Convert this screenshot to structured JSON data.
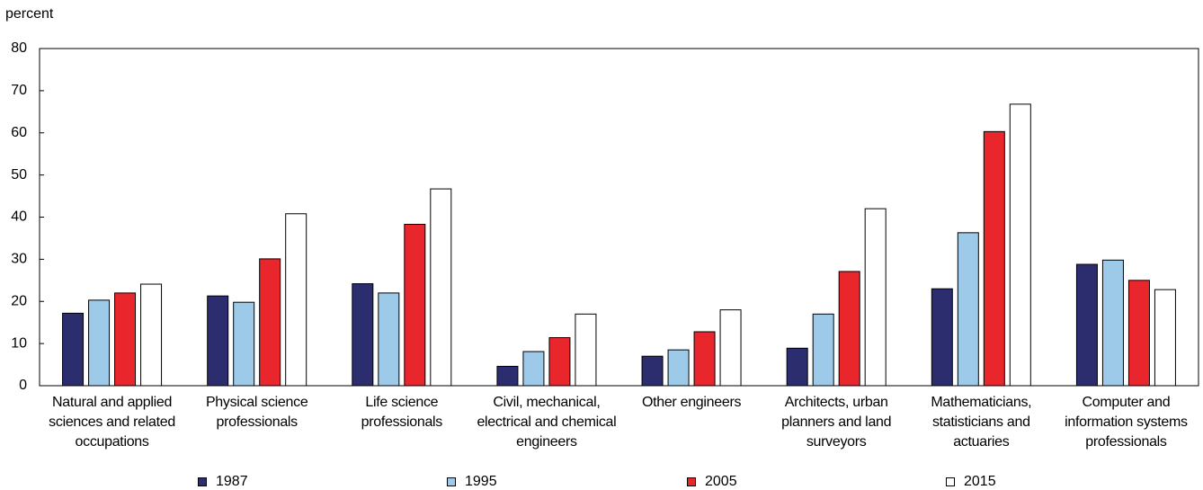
{
  "chart_data": {
    "type": "bar",
    "y_label": "percent",
    "categories": [
      "Natural and applied sciences and related occupations",
      "Physical science professionals",
      "Life science professionals",
      "Civil, mechanical, electrical and chemical engineers",
      "Other engineers",
      "Architects, urban planners and land surveyors",
      "Mathematicians, statisticians and actuaries",
      "Computer and information systems professionals"
    ],
    "series": [
      {
        "name": "1987",
        "color": "#2b2d6e",
        "values": [
          17.2,
          21.3,
          24.2,
          4.6,
          7.0,
          8.9,
          23.0,
          28.8
        ]
      },
      {
        "name": "1995",
        "color": "#9ecae9",
        "values": [
          20.3,
          19.8,
          22.0,
          8.1,
          8.5,
          17.0,
          36.3,
          29.8
        ]
      },
      {
        "name": "2005",
        "color": "#e8262c",
        "values": [
          22.0,
          30.1,
          38.3,
          11.4,
          12.8,
          27.1,
          60.3,
          25.0
        ]
      },
      {
        "name": "2015",
        "color": "#ffffff",
        "values": [
          24.1,
          40.8,
          46.7,
          17.0,
          18.0,
          42.0,
          66.8,
          22.8
        ]
      }
    ],
    "ylim": [
      0,
      80
    ],
    "yticks": [
      0,
      10,
      20,
      30,
      40,
      50,
      60,
      70,
      80
    ],
    "grid": false,
    "legend": "bottom"
  }
}
